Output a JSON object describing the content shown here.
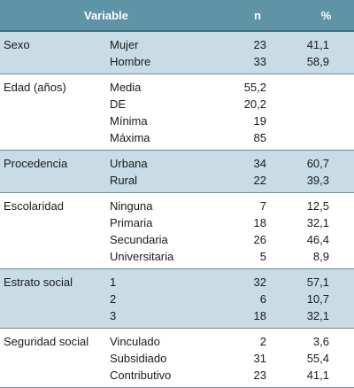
{
  "header": {
    "variable": "Variable",
    "n": "n",
    "pct": "%"
  },
  "groups": [
    {
      "variable": "Sexo",
      "rows": [
        {
          "category": "Mujer",
          "n": "23",
          "pct": "41,1"
        },
        {
          "category": "Hombre",
          "n": "33",
          "pct": "58,9"
        }
      ]
    },
    {
      "variable": "Edad (años)",
      "rows": [
        {
          "category": "Media",
          "n": "55,2",
          "pct": ""
        },
        {
          "category": "DE",
          "n": "20,2",
          "pct": ""
        },
        {
          "category": "Mínima",
          "n": "19",
          "pct": ""
        },
        {
          "category": "Máxima",
          "n": "85",
          "pct": ""
        }
      ]
    },
    {
      "variable": "Procedencia",
      "rows": [
        {
          "category": "Urbana",
          "n": "34",
          "pct": "60,7"
        },
        {
          "category": "Rural",
          "n": "22",
          "pct": "39,3"
        }
      ]
    },
    {
      "variable": "Escolaridad",
      "rows": [
        {
          "category": "Ninguna",
          "n": "7",
          "pct": "12,5"
        },
        {
          "category": "Primaria",
          "n": "18",
          "pct": "32,1"
        },
        {
          "category": "Secundaria",
          "n": "26",
          "pct": "46,4"
        },
        {
          "category": "Universitaria",
          "n": "5",
          "pct": "8,9"
        }
      ]
    },
    {
      "variable": "Estrato social",
      "rows": [
        {
          "category": "1",
          "n": "32",
          "pct": "57,1"
        },
        {
          "category": "2",
          "n": "6",
          "pct": "10,7"
        },
        {
          "category": "3",
          "n": "18",
          "pct": "32,1"
        }
      ]
    },
    {
      "variable": "Seguridad social",
      "rows": [
        {
          "category": "Vinculado",
          "n": "2",
          "pct": "3,6"
        },
        {
          "category": "Subsidiado",
          "n": "31",
          "pct": "55,4"
        },
        {
          "category": "Contributivo",
          "n": "23",
          "pct": "41,1"
        }
      ]
    }
  ]
}
